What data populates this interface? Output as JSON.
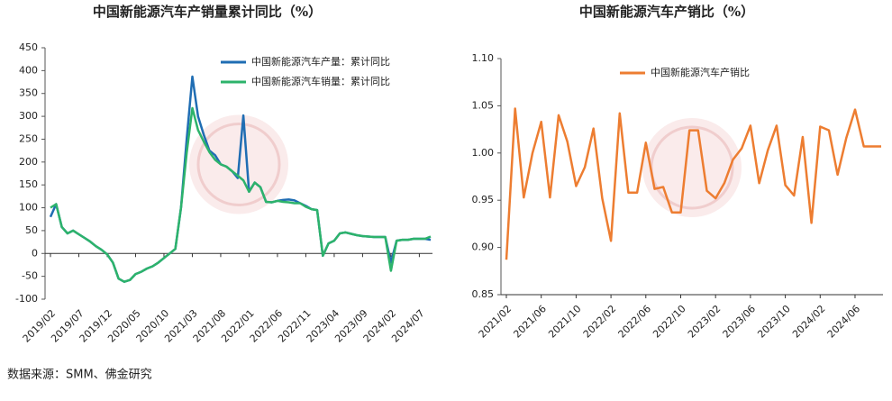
{
  "chart_data": [
    {
      "type": "line",
      "title": "中国新能源汽车产销量累计同比（%）",
      "categories": [
        "2019/02",
        null,
        null,
        null,
        null,
        "2019/07",
        null,
        null,
        null,
        null,
        "2019/12",
        null,
        null,
        null,
        null,
        "2020/05",
        null,
        null,
        null,
        null,
        "2020/10",
        null,
        null,
        null,
        null,
        "2021/03",
        null,
        null,
        null,
        null,
        "2021/08",
        null,
        null,
        null,
        null,
        "2022/01",
        null,
        null,
        null,
        null,
        "2022/06",
        null,
        null,
        null,
        null,
        "2022/11",
        null,
        null,
        null,
        null,
        "2023/04",
        null,
        null,
        null,
        null,
        "2023/09",
        null,
        null,
        null,
        null,
        "2024/02",
        null,
        null,
        null,
        null,
        "2024/07",
        null,
        null
      ],
      "series": [
        {
          "name": "中国新能源汽车产量：累计同比",
          "color": "#1f6db3",
          "values": [
            80,
            108,
            58,
            44,
            50,
            42,
            34,
            26,
            16,
            8,
            -2,
            -20,
            -55,
            -62,
            -58,
            -45,
            -40,
            -33,
            -28,
            -20,
            -10,
            0,
            10,
            100,
            250,
            387,
            300,
            260,
            225,
            215,
            195,
            190,
            180,
            165,
            302,
            135,
            155,
            145,
            113,
            112,
            115,
            117,
            118,
            116,
            110,
            104,
            97,
            95,
            -5,
            22,
            28,
            44,
            46,
            43,
            40,
            38,
            37,
            36,
            36,
            36,
            -20,
            28,
            30,
            30,
            32,
            32,
            32,
            30
          ]
        },
        {
          "name": "中国新能源汽车销量：累计同比",
          "color": "#2db36b",
          "values": [
            100,
            108,
            58,
            44,
            50,
            42,
            34,
            26,
            16,
            8,
            -2,
            -20,
            -55,
            -62,
            -58,
            -45,
            -40,
            -33,
            -28,
            -20,
            -10,
            0,
            10,
            100,
            220,
            318,
            270,
            245,
            222,
            205,
            195,
            190,
            180,
            170,
            160,
            135,
            155,
            145,
            113,
            112,
            115,
            113,
            112,
            110,
            110,
            102,
            97,
            95,
            -5,
            22,
            28,
            44,
            46,
            43,
            40,
            38,
            37,
            36,
            36,
            36,
            -38,
            28,
            30,
            30,
            32,
            32,
            32,
            37
          ]
        }
      ],
      "ylim": [
        -100,
        450
      ],
      "yticks": [
        -100,
        -50,
        0,
        50,
        100,
        150,
        200,
        250,
        300,
        350,
        400,
        450
      ],
      "legend": "upper right"
    },
    {
      "type": "line",
      "title": "中国新能源汽车产销比（%）",
      "categories": [
        "2021/02",
        null,
        null,
        null,
        "2021/06",
        null,
        null,
        null,
        "2021/10",
        null,
        null,
        null,
        "2022/02",
        null,
        null,
        null,
        "2022/06",
        null,
        null,
        null,
        "2022/10",
        null,
        null,
        null,
        "2023/02",
        null,
        null,
        null,
        "2023/06",
        null,
        null,
        null,
        "2023/10",
        null,
        null,
        null,
        "2024/02",
        null,
        null,
        null,
        "2024/06",
        null,
        null,
        null
      ],
      "series": [
        {
          "name": "中国新能源汽车产销比",
          "color": "#ed7d31",
          "values": [
            0.887,
            1.047,
            0.953,
            1.0,
            1.033,
            0.953,
            1.04,
            1.012,
            0.965,
            0.985,
            1.026,
            0.952,
            0.907,
            1.042,
            0.958,
            0.958,
            1.011,
            0.962,
            0.964,
            0.937,
            0.937,
            1.024,
            1.024,
            0.96,
            0.952,
            0.968,
            0.993,
            1.005,
            1.029,
            0.968,
            1.003,
            1.029,
            0.966,
            0.955,
            1.017,
            0.926,
            1.028,
            1.024,
            0.977,
            1.016,
            1.046,
            1.007,
            1.007,
            1.007
          ]
        }
      ],
      "ylim": [
        0.85,
        1.1
      ],
      "yticks": [
        0.85,
        {
          "value": 0.9,
          "label": "0.90"
        },
        0.95,
        {
          "value": 1.0,
          "label": "1.00"
        },
        1.05,
        {
          "value": 1.1,
          "label": "1.10"
        }
      ],
      "legend": "upper center"
    }
  ],
  "source": "数据来源：SMM、佛金研究"
}
